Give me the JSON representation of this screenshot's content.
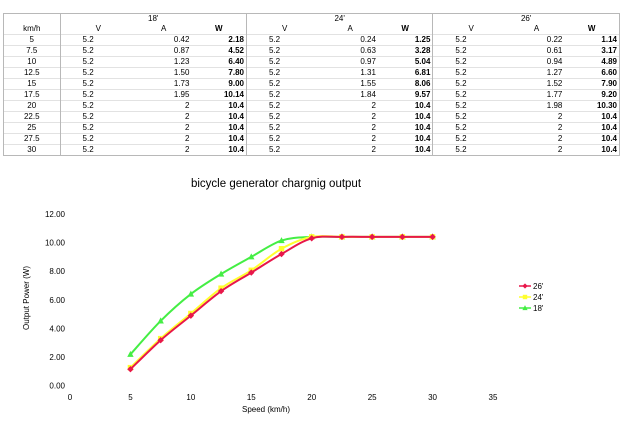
{
  "table": {
    "speed_header": "km/h",
    "groups": [
      {
        "label": "18'",
        "cols": [
          "V",
          "A",
          "W"
        ],
        "rows": [
          [
            "5.2",
            "0.42",
            "2.18"
          ],
          [
            "5.2",
            "0.87",
            "4.52"
          ],
          [
            "5.2",
            "1.23",
            "6.40"
          ],
          [
            "5.2",
            "1.50",
            "7.80"
          ],
          [
            "5.2",
            "1.73",
            "9.00"
          ],
          [
            "5.2",
            "1.95",
            "10.14"
          ],
          [
            "5.2",
            "2",
            "10.4"
          ],
          [
            "5.2",
            "2",
            "10.4"
          ],
          [
            "5.2",
            "2",
            "10.4"
          ],
          [
            "5.2",
            "2",
            "10.4"
          ],
          [
            "5.2",
            "2",
            "10.4"
          ]
        ]
      },
      {
        "label": "24'",
        "cols": [
          "V",
          "A",
          "W"
        ],
        "rows": [
          [
            "5.2",
            "0.24",
            "1.25"
          ],
          [
            "5.2",
            "0.63",
            "3.28"
          ],
          [
            "5.2",
            "0.97",
            "5.04"
          ],
          [
            "5.2",
            "1.31",
            "6.81"
          ],
          [
            "5.2",
            "1.55",
            "8.06"
          ],
          [
            "5.2",
            "1.84",
            "9.57"
          ],
          [
            "5.2",
            "2",
            "10.4"
          ],
          [
            "5.2",
            "2",
            "10.4"
          ],
          [
            "5.2",
            "2",
            "10.4"
          ],
          [
            "5.2",
            "2",
            "10.4"
          ],
          [
            "5.2",
            "2",
            "10.4"
          ]
        ]
      },
      {
        "label": "26'",
        "cols": [
          "V",
          "A",
          "W"
        ],
        "rows": [
          [
            "5.2",
            "0.22",
            "1.14"
          ],
          [
            "5.2",
            "0.61",
            "3.17"
          ],
          [
            "5.2",
            "0.94",
            "4.89"
          ],
          [
            "5.2",
            "1.27",
            "6.60"
          ],
          [
            "5.2",
            "1.52",
            "7.90"
          ],
          [
            "5.2",
            "1.77",
            "9.20"
          ],
          [
            "5.2",
            "1.98",
            "10.30"
          ],
          [
            "5.2",
            "2",
            "10.4"
          ],
          [
            "5.2",
            "2",
            "10.4"
          ],
          [
            "5.2",
            "2",
            "10.4"
          ],
          [
            "5.2",
            "2",
            "10.4"
          ]
        ]
      }
    ],
    "speeds": [
      "5",
      "7.5",
      "10",
      "12.5",
      "15",
      "17.5",
      "20",
      "22.5",
      "25",
      "27.5",
      "30"
    ]
  },
  "chart_data": {
    "type": "line",
    "title": "bicycle generator chargnig output",
    "xlabel": "Speed (km/h)",
    "ylabel": "Output Power (W)",
    "xlim": [
      0,
      35
    ],
    "ylim": [
      0,
      12
    ],
    "x_ticks": [
      "0",
      "5",
      "10",
      "15",
      "20",
      "25",
      "30",
      "35"
    ],
    "y_ticks": [
      "0.00",
      "2.00",
      "4.00",
      "6.00",
      "8.00",
      "10.00",
      "12.00"
    ],
    "grid": false,
    "legend_position": "right",
    "x": [
      5,
      7.5,
      10,
      12.5,
      15,
      17.5,
      20,
      22.5,
      25,
      27.5,
      30
    ],
    "series": [
      {
        "name": "26'",
        "color": "#e8174a",
        "marker": "diamond",
        "values": [
          1.14,
          3.17,
          4.89,
          6.6,
          7.9,
          9.2,
          10.3,
          10.4,
          10.4,
          10.4,
          10.4
        ]
      },
      {
        "name": "24'",
        "color": "#ffff2e",
        "marker": "square",
        "values": [
          1.25,
          3.28,
          5.04,
          6.81,
          8.06,
          9.57,
          10.4,
          10.4,
          10.4,
          10.4,
          10.4
        ]
      },
      {
        "name": "18'",
        "color": "#44ee44",
        "marker": "triangle",
        "values": [
          2.18,
          4.52,
          6.4,
          7.8,
          9.0,
          10.14,
          10.4,
          10.4,
          10.4,
          10.4,
          10.4
        ]
      }
    ]
  }
}
